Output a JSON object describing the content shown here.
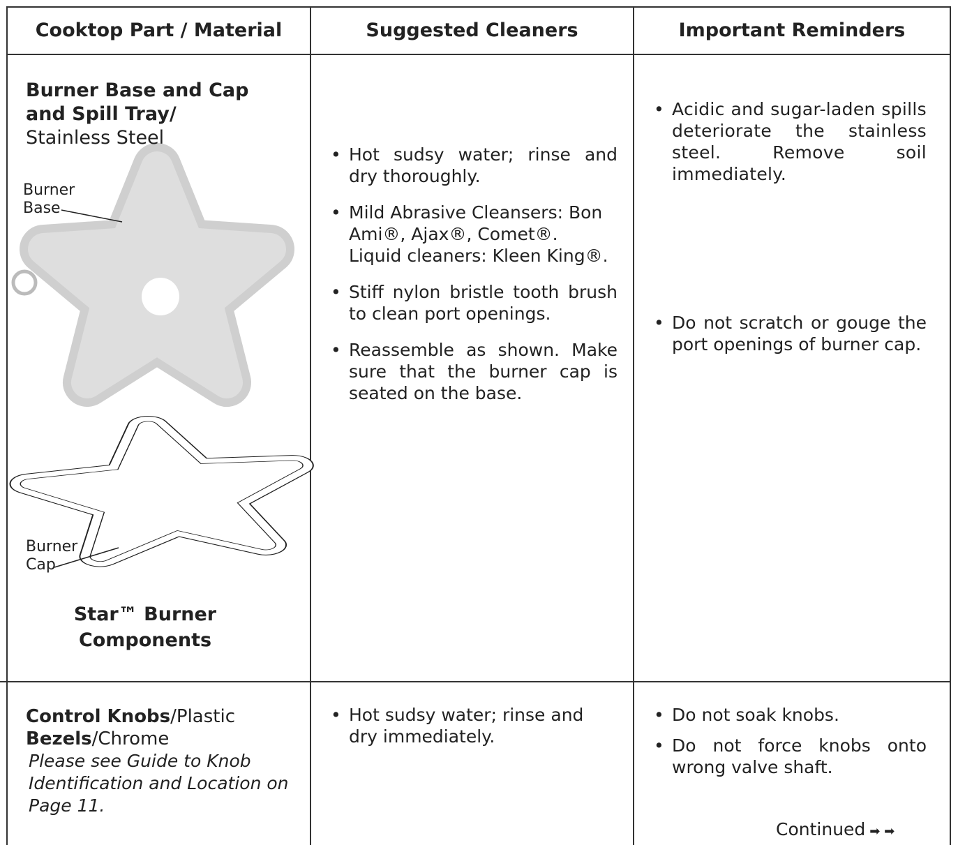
{
  "table": {
    "headers": [
      "Cooktop Part / Material",
      "Suggested Cleaners",
      "Important Reminders"
    ],
    "rows": [
      {
        "part": {
          "name": "Burner Base and Cap and Spill Tray/",
          "material": "Stainless Steel",
          "figure_labels": [
            "Burner Base",
            "Burner Cap"
          ],
          "figure_caption": "Star™ Burner Components"
        },
        "cleaners": [
          "Hot sudsy water; rinse and dry thoroughly.",
          [
            "Mild Abrasive Cleansers: Bon Ami®, Ajax®, Comet®.",
            "Liquid cleaners: Kleen King®."
          ],
          "Stiff nylon bristle tooth brush to clean port openings.",
          "Reassemble as shown. Make sure that the burner cap is seated on the base."
        ],
        "reminders": [
          "Acidic and sugar-laden spills deteriorate the stainless steel. Remove soil immediately.",
          "Do not scratch or gouge the port openings of burner cap."
        ]
      },
      {
        "part": {
          "items": [
            {
              "name": "Control Knobs",
              "material": "/Plastic"
            },
            {
              "name": "Bezels",
              "material": "/Chrome"
            }
          ],
          "note": "Please see Guide to Knob Identification and Location on Page 11."
        },
        "cleaners": [
          "Hot sudsy water; rinse and dry immediately."
        ],
        "reminders": [
          "Do not soak knobs.",
          "Do not force knobs onto wrong valve shaft."
        ]
      }
    ]
  },
  "footer": {
    "continued": "Continued"
  }
}
